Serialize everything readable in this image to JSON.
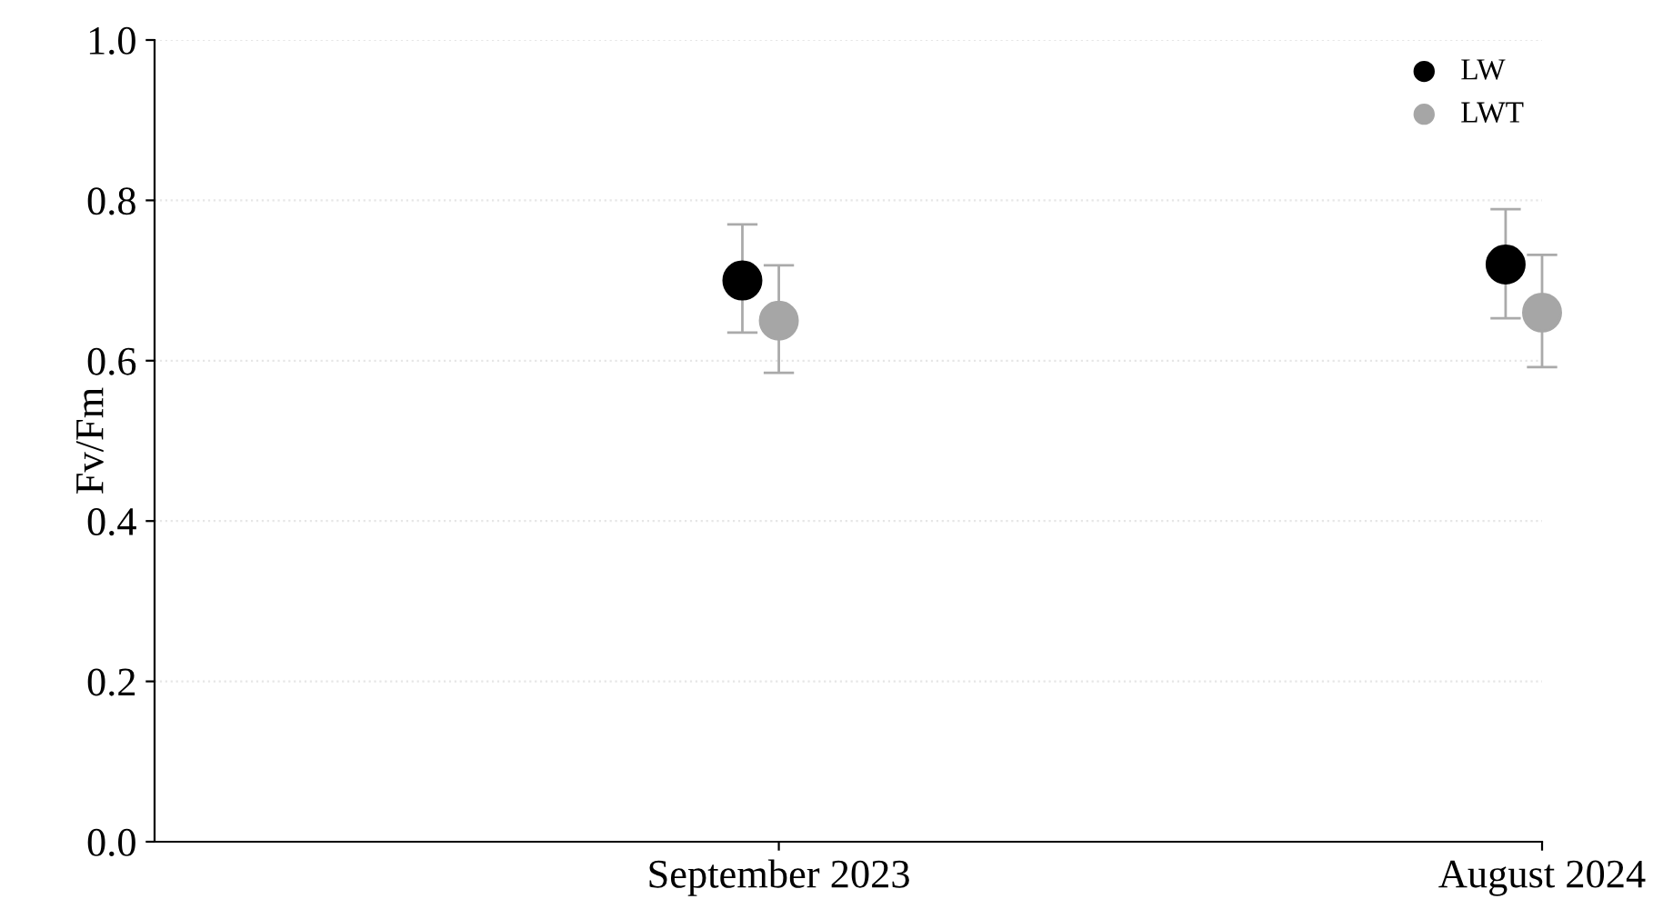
{
  "chart_data": {
    "type": "scatter",
    "ylabel": "Fv/Fm",
    "xlim": [
      "2022-12",
      "2024-08"
    ],
    "xticks": [
      {
        "value": "2023-09",
        "label": "September 2023"
      },
      {
        "value": "2024-08",
        "label": "August 2024"
      }
    ],
    "ylim": [
      0,
      1.0
    ],
    "yticks": [
      {
        "value": 0,
        "label": "0.0"
      },
      0.2,
      0.4,
      0.6,
      0.8,
      {
        "value": 1.0,
        "label": "1.0"
      }
    ],
    "grid": "y",
    "legend": "top right",
    "marker": "circle",
    "series": [
      {
        "name": "LW",
        "color": "#000000",
        "x": [
          "2023-08-16",
          "2024-07-16"
        ],
        "values": [
          0.7,
          0.72
        ],
        "errors": [
          [
            0.635,
            0.77
          ],
          [
            0.653,
            0.789
          ]
        ]
      },
      {
        "name": "LWT",
        "color": "#a6a6a6",
        "x": [
          "2023-09",
          "2024-08"
        ],
        "values": [
          0.65,
          0.66
        ],
        "errors": [
          [
            0.585,
            0.719
          ],
          [
            0.592,
            0.732
          ]
        ]
      }
    ]
  }
}
